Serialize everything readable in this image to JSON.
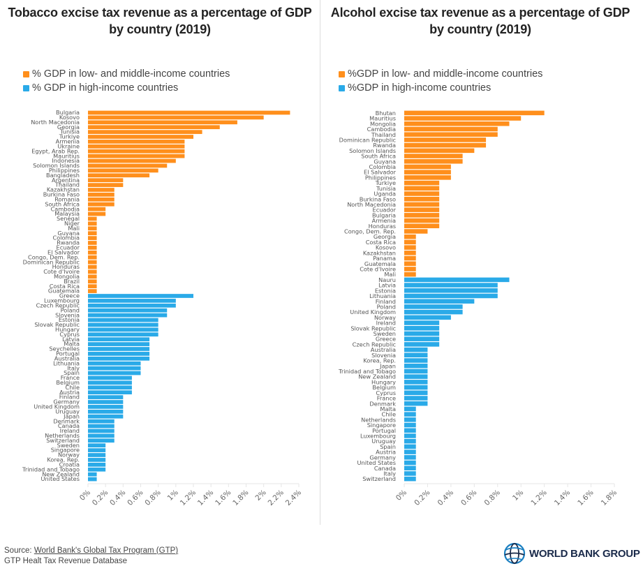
{
  "colors": {
    "low_middle": "#FF8F1C",
    "high": "#2AAAE8",
    "axis": "#e6e6e6",
    "label": "#555555"
  },
  "footer": {
    "source_prefix": "Source: ",
    "source_link": "World Bank's Global Tax Program (GTP)",
    "line2": "GTP Healt Tax Revenue Database"
  },
  "logo": {
    "text": "WORLD BANK GROUP",
    "icon": "globe-icon"
  },
  "chart_data": [
    {
      "type": "bar",
      "orientation": "horizontal",
      "title": "Tobacco excise tax revenue as a percentage of GDP by country (2019)",
      "legend": [
        "% GDP in low- and middle-income countries",
        "% GDP in high-income countries"
      ],
      "legend_position": "top-left",
      "xlabel": "",
      "ylabel": "",
      "xlim": [
        0,
        2.4
      ],
      "xticks": [
        "0%",
        "0.2%",
        "0.4%",
        "0.6%",
        "0.8%",
        "1%",
        "1.2%",
        "1.4%",
        "1.6%",
        "1.8%",
        "2%",
        "2.2%",
        "2.4%"
      ],
      "grid": false,
      "series": [
        {
          "name": "% GDP in low- and middle-income countries",
          "categories": [
            "Bulgaria",
            "Kosovo",
            "North Macedonia",
            "Georgia",
            "Tunisia",
            "Turkiye",
            "Armenia",
            "Ukraine",
            "Egypt, Arab Rep.",
            "Mauritius",
            "Indonesia",
            "Solomon Islands",
            "Philippines",
            "Bangladesh",
            "Argentina",
            "Thailand",
            "Kazakhstan",
            "Burkina Faso",
            "Romania",
            "South Africa",
            "Cambodia",
            "Malaysia",
            "Senegal",
            "Niger",
            "Mali",
            "Guyana",
            "Colombia",
            "Rwanda",
            "Ecuador",
            "El Salvador",
            "Congo, Dem. Rep.",
            "Dominican Republic",
            "Honduras",
            "Cote d'Ivoire",
            "Mongolia",
            "Brazil",
            "Costa Rica",
            "Guatemala"
          ],
          "values": [
            2.3,
            2.0,
            1.7,
            1.5,
            1.3,
            1.2,
            1.1,
            1.1,
            1.1,
            1.1,
            1.0,
            0.9,
            0.8,
            0.7,
            0.4,
            0.4,
            0.3,
            0.3,
            0.3,
            0.3,
            0.2,
            0.2,
            0.1,
            0.1,
            0.1,
            0.1,
            0.1,
            0.1,
            0.1,
            0.1,
            0.1,
            0.1,
            0.1,
            0.1,
            0.1,
            0.1,
            0.1,
            0.1
          ]
        },
        {
          "name": "% GDP in high-income countries",
          "categories": [
            "Greece",
            "Luxembourg",
            "Czech Republic",
            "Poland",
            "Slovenia",
            "Estonia",
            "Slovak Republic",
            "Hungary",
            "Cyprus",
            "Latvia",
            "Malta",
            "Seychelles",
            "Portugal",
            "Australia",
            "Lithuania",
            "Italy",
            "Spain",
            "France",
            "Belgium",
            "Chile",
            "Austria",
            "Finland",
            "Germany",
            "United Kingdom",
            "Uruguay",
            "Japan",
            "Denmark",
            "Canada",
            "Ireland",
            "Netherlands",
            "Switzerland",
            "Sweden",
            "Singapore",
            "Norway",
            "Korea, Rep.",
            "Croatia",
            "Trinidad and Tobago",
            "New Zealand",
            "United States"
          ],
          "values": [
            1.2,
            1.0,
            1.0,
            0.9,
            0.9,
            0.8,
            0.8,
            0.8,
            0.8,
            0.7,
            0.7,
            0.7,
            0.7,
            0.7,
            0.6,
            0.6,
            0.6,
            0.5,
            0.5,
            0.5,
            0.5,
            0.4,
            0.4,
            0.4,
            0.4,
            0.4,
            0.3,
            0.3,
            0.3,
            0.3,
            0.3,
            0.2,
            0.2,
            0.2,
            0.2,
            0.2,
            0.2,
            0.1,
            0.1
          ]
        }
      ]
    },
    {
      "type": "bar",
      "orientation": "horizontal",
      "title": "Alcohol excise tax revenue as a percentage of GDP by country (2019)",
      "legend": [
        "%GDP in low- and middle-income countries",
        "%GDP in high-income countries"
      ],
      "legend_position": "top-left",
      "xlabel": "",
      "ylabel": "",
      "xlim": [
        0,
        1.8
      ],
      "xticks": [
        "0%",
        "0.2%",
        "0.4%",
        "0.6%",
        "0.8%",
        "1%",
        "1.2%",
        "1.4%",
        "1.6%",
        "1.8%"
      ],
      "grid": false,
      "series": [
        {
          "name": "%GDP in low- and middle-income countries",
          "categories": [
            "Bhutan",
            "Mauritius",
            "Mongolia",
            "Cambodia",
            "Thailand",
            "Dominican Republic",
            "Rwanda",
            "Solomon Islands",
            "South Africa",
            "Guyana",
            "Colombia",
            "El Salvador",
            "Philippines",
            "Turkiye",
            "Tunisia",
            "Uganda",
            "Burkina Faso",
            "North Macedonia",
            "Ecuador",
            "Bulgaria",
            "Armenia",
            "Honduras",
            "Congo, Dem. Rep.",
            "Georgia",
            "Costa Rica",
            "Kosovo",
            "Kazakhstan",
            "Panama",
            "Guatemala",
            "Cote d'Ivoire",
            "Mali"
          ],
          "values": [
            1.2,
            1.0,
            0.9,
            0.8,
            0.8,
            0.7,
            0.7,
            0.6,
            0.5,
            0.5,
            0.4,
            0.4,
            0.4,
            0.3,
            0.3,
            0.3,
            0.3,
            0.3,
            0.3,
            0.3,
            0.3,
            0.3,
            0.2,
            0.1,
            0.1,
            0.1,
            0.1,
            0.1,
            0.1,
            0.1,
            0.1
          ]
        },
        {
          "name": "%GDP in high-income countries",
          "categories": [
            "Nauru",
            "Latvia",
            "Estonia",
            "Lithuania",
            "Finland",
            "Poland",
            "United Kingdom",
            "Norway",
            "Ireland",
            "Slovak Republic",
            "Sweden",
            "Greece",
            "Czech Republic",
            "Australia",
            "Slovenia",
            "Korea, Rep.",
            "Japan",
            "Trinidad and Tobago",
            "New Zealand",
            "Hungary",
            "Belgium",
            "Cyprus",
            "France",
            "Denmark",
            "Malta",
            "Chile",
            "Netherlands",
            "Singapore",
            "Portugal",
            "Luxembourg",
            "Uruguay",
            "Spain",
            "Austria",
            "Germany",
            "United States",
            "Canada",
            "Italy",
            "Switzerland"
          ],
          "values": [
            0.9,
            0.8,
            0.8,
            0.8,
            0.6,
            0.5,
            0.5,
            0.4,
            0.3,
            0.3,
            0.3,
            0.3,
            0.3,
            0.2,
            0.2,
            0.2,
            0.2,
            0.2,
            0.2,
            0.2,
            0.2,
            0.2,
            0.2,
            0.2,
            0.1,
            0.1,
            0.1,
            0.1,
            0.1,
            0.1,
            0.1,
            0.1,
            0.1,
            0.1,
            0.1,
            0.1,
            0.1,
            0.1
          ]
        }
      ]
    }
  ]
}
